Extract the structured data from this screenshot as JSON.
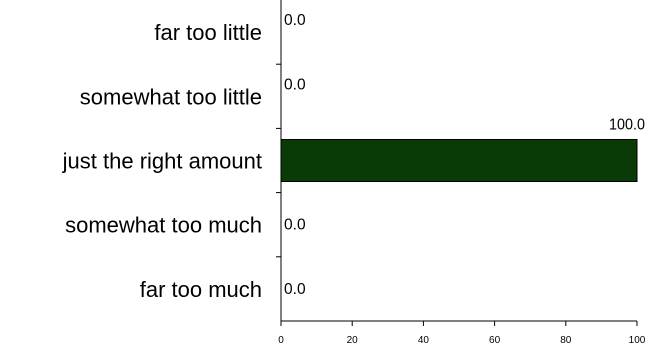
{
  "chart_data": {
    "type": "bar",
    "orientation": "horizontal",
    "categories": [
      "far too little",
      "somewhat too little",
      "just the right amount",
      "somewhat too much",
      "far too much"
    ],
    "values": [
      0.0,
      0.0,
      100.0,
      0.0,
      0.0
    ],
    "data_labels": [
      "0.0",
      "0.0",
      "100.0",
      "0.0",
      "0.0"
    ],
    "x_ticks": [
      "0",
      "20",
      "40",
      "60",
      "80",
      "100"
    ],
    "xlim": [
      0,
      100
    ],
    "title": "",
    "xlabel": "",
    "ylabel": "",
    "grid": false,
    "legend": "none",
    "bar_color": "#0a3a06"
  }
}
